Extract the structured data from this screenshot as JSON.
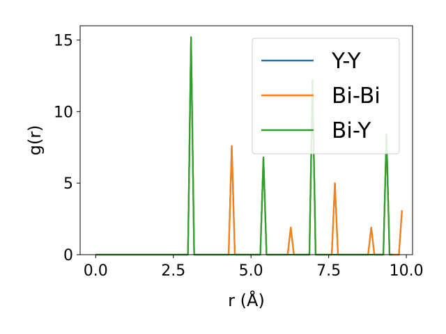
{
  "chart_data": {
    "type": "line",
    "title": "",
    "xlabel": "r (Å)",
    "ylabel": "g(r)",
    "xlim": [
      -0.5,
      10.2
    ],
    "ylim": [
      0,
      16
    ],
    "x_ticks": [
      0.0,
      2.5,
      5.0,
      7.5,
      10.0
    ],
    "x_tick_labels": [
      "0.0",
      "2.5",
      "5.0",
      "7.5",
      "10.0"
    ],
    "y_ticks": [
      0,
      5,
      10,
      15
    ],
    "y_tick_labels": [
      "0",
      "5",
      "10",
      "15"
    ],
    "grid": false,
    "legend_position": "top-right",
    "series": [
      {
        "name": "Y-Y",
        "color": "#1f77b4",
        "x": [
          0.0,
          2.97,
          3.07,
          3.17,
          4.28,
          4.38,
          4.48,
          5.3,
          5.4,
          5.5,
          6.18,
          6.28,
          6.38,
          6.88,
          6.98,
          7.08,
          7.6,
          7.7,
          7.8,
          8.77,
          8.87,
          8.97,
          9.26,
          9.36,
          9.46,
          9.76,
          9.86
        ],
        "y": [
          0,
          0,
          15.2,
          0,
          0,
          7.6,
          0,
          0,
          6.8,
          0,
          0,
          1.9,
          0,
          0,
          12.2,
          0,
          0,
          5.0,
          0,
          0,
          1.9,
          0,
          0,
          8.4,
          0,
          0,
          3.1
        ]
      },
      {
        "name": "Bi-Bi",
        "color": "#ff7f0e",
        "x": [
          0.0,
          2.97,
          3.07,
          3.17,
          4.28,
          4.38,
          4.48,
          5.3,
          5.4,
          5.5,
          6.18,
          6.28,
          6.38,
          6.88,
          6.98,
          7.08,
          7.6,
          7.7,
          7.8,
          8.77,
          8.87,
          8.97,
          9.26,
          9.36,
          9.46,
          9.76,
          9.86
        ],
        "y": [
          0,
          0,
          15.2,
          0,
          0,
          7.6,
          0,
          0,
          6.8,
          0,
          0,
          1.9,
          0,
          0,
          12.2,
          0,
          0,
          5.0,
          0,
          0,
          1.9,
          0,
          0,
          8.4,
          0,
          0,
          3.1
        ]
      },
      {
        "name": "Bi-Y",
        "color": "#2ca02c",
        "x": [
          0.0,
          2.97,
          3.07,
          3.17,
          5.3,
          5.4,
          5.5,
          6.88,
          6.98,
          7.08,
          9.26,
          9.36,
          9.46,
          9.56
        ],
        "y": [
          0,
          0,
          15.2,
          0,
          0,
          6.8,
          0,
          0,
          12.2,
          0,
          0,
          8.4,
          0,
          0
        ]
      }
    ]
  }
}
